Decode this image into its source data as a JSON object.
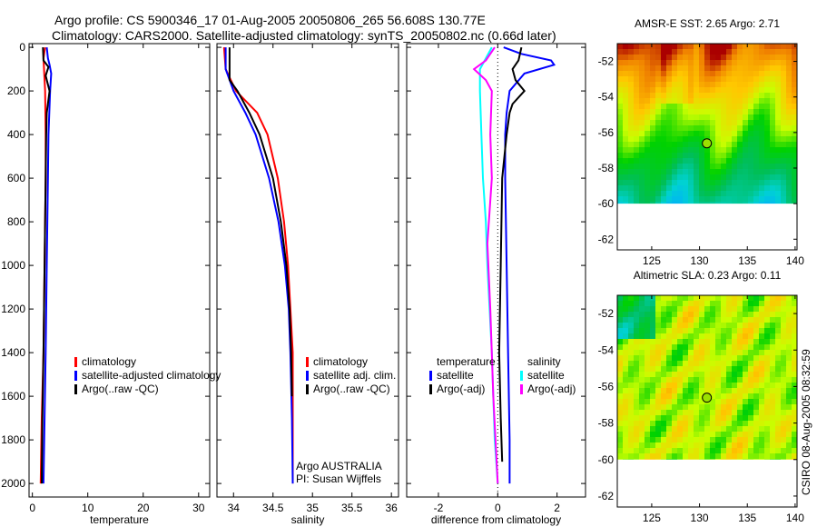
{
  "figure": {
    "title_line1": "Argo profile: CS 5900346_17 01-Aug-2005 20050806_265 56.608S 130.77E",
    "title_line2": "Climatology: CARS2000. Satellite-adjusted climatology: synTS_20050802.nc (0.66d later)",
    "side_stamp": "CSIRO 08-Aug-2005 08:32:59",
    "credit_line1": "Argo AUSTRALIA",
    "credit_line2": "PI: Susan Wijffels"
  },
  "colors": {
    "climatology": "#ff0000",
    "satellite": "#0000ff",
    "argo": "#000000",
    "sal_satellite": "#00ffff",
    "sal_argo": "#ff00ff"
  },
  "chart_data": [
    {
      "type": "line",
      "xlabel": "temperature",
      "ylabel": "",
      "xlim": [
        -0.6,
        32
      ],
      "ylim": [
        2062,
        -17
      ],
      "xticks": [
        0,
        10,
        20,
        30
      ],
      "yticks": [
        0,
        200,
        400,
        600,
        800,
        1000,
        1200,
        1400,
        1600,
        1800,
        2000
      ],
      "legend": {
        "placement": "center-right",
        "entries": [
          "climatology",
          "satellite-adjusted climatology",
          "Argo(..raw -QC)"
        ]
      },
      "series": [
        {
          "name": "climatology",
          "color_key": "climatology",
          "depth": [
            0,
            50,
            100,
            200,
            400,
            600,
            1000,
            1400,
            1700,
            2000
          ],
          "value": [
            2.3,
            2.0,
            2.1,
            2.3,
            2.4,
            2.4,
            2.2,
            2.0,
            1.7,
            1.5
          ]
        },
        {
          "name": "satellite-adjusted climatology",
          "color_key": "satellite",
          "depth": [
            0,
            50,
            80,
            120,
            200,
            400,
            600,
            1000,
            1400,
            1700,
            2000
          ],
          "value": [
            2.6,
            2.8,
            3.1,
            3.4,
            3.2,
            2.9,
            2.8,
            2.6,
            2.4,
            2.2,
            2.0
          ]
        },
        {
          "name": "Argo(..raw -QC)",
          "color_key": "argo",
          "depth": [
            0,
            60,
            90,
            130,
            200,
            300,
            400,
            600,
            1000,
            1400,
            1700,
            2000
          ],
          "value": [
            1.9,
            2.0,
            2.9,
            2.4,
            3.1,
            2.6,
            2.5,
            2.4,
            2.2,
            2.0,
            1.8,
            1.7
          ]
        }
      ]
    },
    {
      "type": "line",
      "xlabel": "salinity",
      "xlim": [
        33.79,
        36.09
      ],
      "ylim": [
        2062,
        -17
      ],
      "xticks": [
        34,
        34.5,
        35,
        35.5,
        36
      ],
      "legend": {
        "placement": "center-right",
        "entries": [
          "climatology",
          "satellite adj. clim.",
          "Argo(..raw -QC)"
        ]
      },
      "series": [
        {
          "name": "climatology",
          "color_key": "climatology",
          "depth": [
            0,
            100,
            200,
            300,
            400,
            600,
            800,
            1000,
            1200,
            1400,
            1700,
            2000
          ],
          "value": [
            33.88,
            33.9,
            34.03,
            34.3,
            34.43,
            34.56,
            34.64,
            34.69,
            34.72,
            34.75,
            34.75,
            34.75
          ]
        },
        {
          "name": "satellite adj. clim.",
          "color_key": "satellite",
          "depth": [
            0,
            100,
            200,
            300,
            400,
            600,
            800,
            1000,
            1200,
            1400,
            1700,
            2000
          ],
          "value": [
            33.9,
            33.9,
            34.0,
            34.15,
            34.28,
            34.45,
            34.57,
            34.65,
            34.7,
            34.72,
            34.74,
            34.75
          ]
        },
        {
          "name": "Argo(..raw -QC)",
          "color_key": "argo",
          "depth": [
            0,
            80,
            150,
            200,
            300,
            400,
            600,
            800,
            1000,
            1200,
            1400,
            1600
          ],
          "value": [
            33.95,
            33.95,
            33.95,
            34.05,
            34.2,
            34.33,
            34.5,
            34.6,
            34.67,
            34.71,
            34.73,
            34.74
          ]
        }
      ]
    },
    {
      "type": "line",
      "xlabel": "difference from climatology",
      "xlim": [
        -3.07,
        2.96
      ],
      "ylim": [
        2062,
        -17
      ],
      "xticks": [
        -2,
        0,
        2
      ],
      "zero_line": true,
      "legend": {
        "placement": "center",
        "temperature_header": "temperature",
        "salinity_header": "salinity",
        "temperature_entries": [
          "satellite",
          "Argo(-adj)"
        ],
        "salinity_entries": [
          "satellite",
          "Argo(-adj)"
        ]
      },
      "series": [
        {
          "name": "temperature satellite",
          "color_key": "satellite",
          "depth": [
            0,
            30,
            60,
            80,
            120,
            200,
            300,
            400,
            600,
            1000,
            1400,
            1800,
            2000
          ],
          "value": [
            0.2,
            0.8,
            1.8,
            1.9,
            0.9,
            0.4,
            0.3,
            0.25,
            0.25,
            0.3,
            0.35,
            0.4,
            0.4
          ]
        },
        {
          "name": "temperature Argo(-adj)",
          "color_key": "argo",
          "depth": [
            0,
            60,
            100,
            150,
            200,
            260,
            300,
            400,
            600,
            1000,
            1400,
            1700,
            1900
          ],
          "value": [
            0.8,
            0.7,
            0.5,
            0.6,
            0.9,
            0.5,
            0.4,
            0.3,
            0.15,
            0.1,
            0.05,
            0.1,
            0.15
          ]
        },
        {
          "name": "salinity satellite",
          "color_key": "sal_satellite",
          "depth": [
            0,
            100,
            200,
            400,
            600,
            800,
            1000,
            1400,
            1800,
            2000
          ],
          "value": [
            -0.2,
            -0.6,
            -0.6,
            -0.55,
            -0.5,
            -0.4,
            -0.35,
            -0.2,
            -0.1,
            0.0
          ]
        },
        {
          "name": "salinity Argo(-adj)",
          "color_key": "sal_argo",
          "depth": [
            0,
            60,
            100,
            150,
            200,
            400,
            600,
            900,
            1200,
            1600,
            2000
          ],
          "value": [
            -0.1,
            -0.4,
            -0.8,
            -0.4,
            -0.2,
            -0.25,
            -0.2,
            -0.35,
            -0.25,
            -0.15,
            0.0
          ]
        }
      ]
    },
    {
      "type": "heatmap",
      "title": "AMSR-E SST: 2.65 Argo: 2.71",
      "xlim": [
        121.4,
        140.2
      ],
      "ylim": [
        -51.0,
        -62.6
      ],
      "data_extent_lat": [
        -51.0,
        -60
      ],
      "xticks": [
        125,
        130,
        135,
        140
      ],
      "yticks": [
        -52,
        -54,
        -56,
        -58,
        -60,
        -62
      ],
      "marker": {
        "lon": 130.77,
        "lat": -56.608
      }
    },
    {
      "type": "heatmap",
      "title": "Altimetric SLA: 0.23 Argo: 0.11",
      "xlim": [
        121.4,
        140.2
      ],
      "ylim": [
        -51.0,
        -62.6
      ],
      "data_extent_lat": [
        -51.0,
        -60
      ],
      "xticks": [
        125,
        130,
        135,
        140
      ],
      "yticks": [
        -52,
        -54,
        -56,
        -58,
        -60,
        -62
      ],
      "marker": {
        "lon": 130.77,
        "lat": -56.608
      }
    }
  ]
}
